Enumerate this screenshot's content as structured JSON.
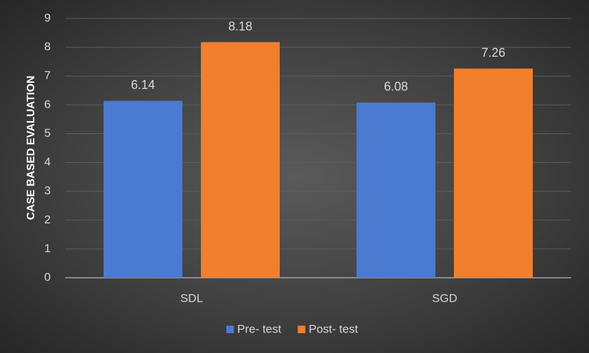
{
  "chart_data": {
    "type": "bar",
    "ylabel": "CASE BASED EVALUATION",
    "categories": [
      "SDL",
      "SGD"
    ],
    "series": [
      {
        "name": "Pre- test",
        "color": "#4a7bd0",
        "values": [
          6.14,
          6.08
        ]
      },
      {
        "name": "Post- test",
        "color": "#f07f2e",
        "values": [
          8.18,
          7.26
        ]
      }
    ],
    "ylim": [
      0,
      9
    ],
    "yticks": [
      0,
      1,
      2,
      3,
      4,
      5,
      6,
      7,
      8,
      9
    ],
    "grid": true,
    "legend": "bottom"
  }
}
